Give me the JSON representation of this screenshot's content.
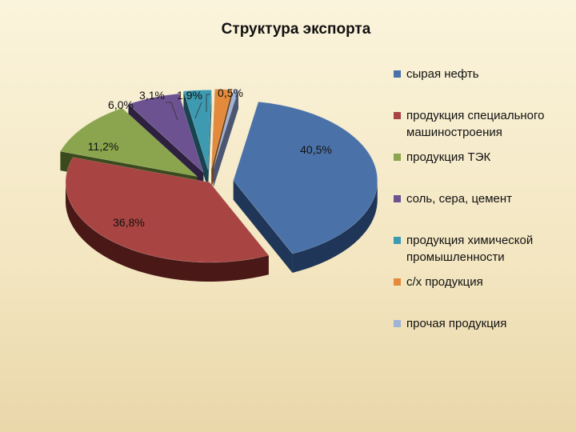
{
  "chart_data": {
    "type": "pie",
    "title": "Структура экспорта",
    "slices": [
      {
        "label": "сырая нефть",
        "value": 40.5,
        "value_label": "40,5%",
        "color": "#4a72a8",
        "dark": "#1f3659"
      },
      {
        "label": "продукция специального машиностроения",
        "value": 36.8,
        "value_label": "36,8%",
        "color": "#a84542",
        "dark": "#4a1817"
      },
      {
        "label": "продукция ТЭК",
        "value": 11.2,
        "value_label": "11,2%",
        "color": "#8aa54d",
        "dark": "#3a4a1c"
      },
      {
        "label": "соль, сера, цемент",
        "value": 6.0,
        "value_label": "6,0%",
        "color": "#6c5290",
        "dark": "#2e2140"
      },
      {
        "label": "продукция химической промышленности",
        "value": 3.1,
        "value_label": "3,1%",
        "color": "#3d9ab0",
        "dark": "#174450"
      },
      {
        "label": "с/х продукция",
        "value": 1.9,
        "value_label": "1,9%",
        "color": "#e38a3c",
        "dark": "#6e3d12"
      },
      {
        "label": "прочая продукция",
        "value": 0.5,
        "value_label": "0,5%",
        "color": "#9fb3d6",
        "dark": "#4c5670"
      }
    ],
    "legend_position": "right"
  }
}
